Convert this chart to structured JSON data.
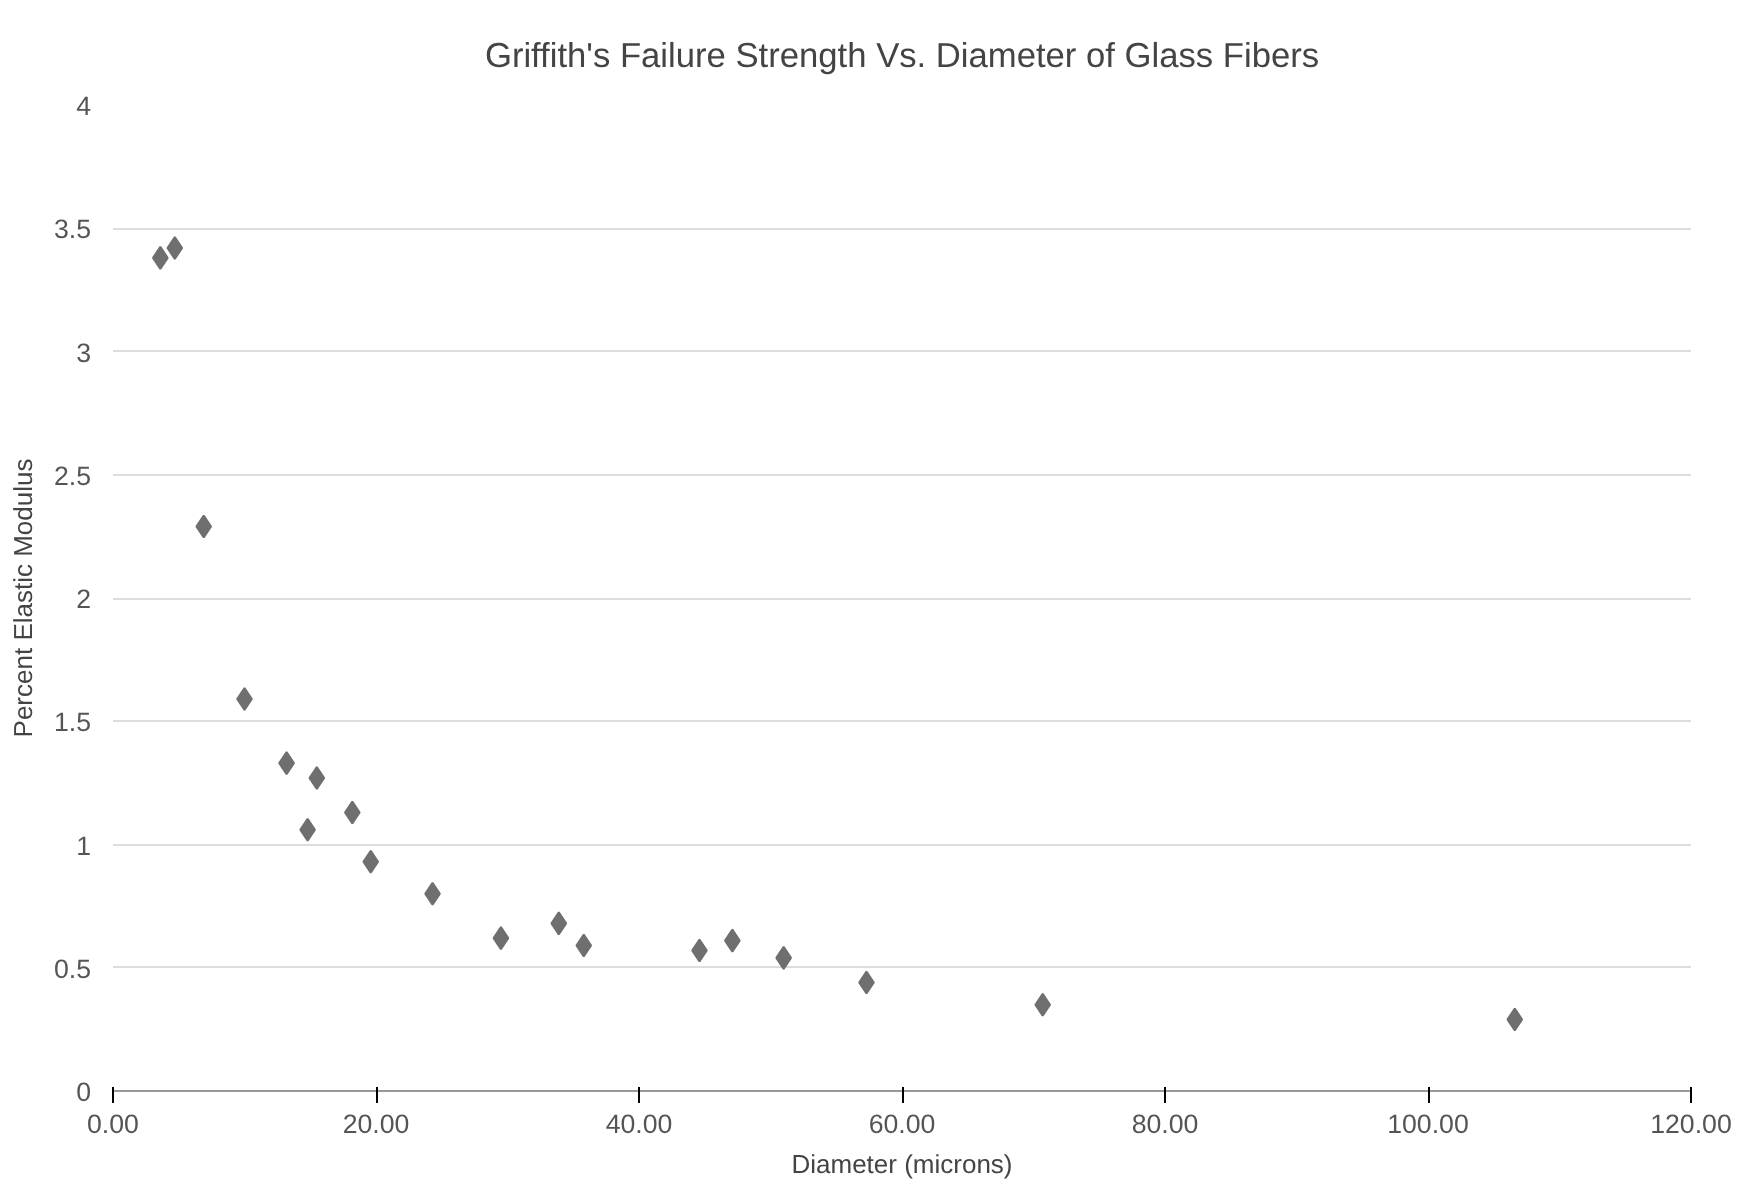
{
  "chart_data": {
    "type": "scatter",
    "title": "Griffith's Failure Strength Vs. Diameter of Glass Fibers",
    "xlabel": "Diameter (microns)",
    "ylabel": "Percent Elastic Modulus",
    "x": [
      3.6,
      4.7,
      6.9,
      10.0,
      13.2,
      14.8,
      15.5,
      18.2,
      19.6,
      24.3,
      29.5,
      33.9,
      35.8,
      44.6,
      47.1,
      51.0,
      57.3,
      70.7,
      106.6
    ],
    "series": [
      {
        "color": "#6f6f6f",
        "values": [
          3.38,
          3.42,
          2.29,
          1.59,
          1.33,
          1.06,
          1.27,
          1.13,
          0.93,
          0.8,
          0.62,
          0.68,
          0.59,
          0.57,
          0.61,
          0.54,
          0.44,
          0.35,
          0.29
        ]
      }
    ],
    "xlim": [
      0,
      120
    ],
    "ylim": [
      0,
      4
    ],
    "xticks": [
      {
        "value": 0,
        "label": "0.00"
      },
      {
        "value": 20,
        "label": "20.00"
      },
      {
        "value": 40,
        "label": "40.00"
      },
      {
        "value": 60,
        "label": "60.00"
      },
      {
        "value": 80,
        "label": "80.00"
      },
      {
        "value": 100,
        "label": "100.00"
      },
      {
        "value": 120,
        "label": "120.00"
      }
    ],
    "yticks": [
      0,
      0.5,
      1,
      1.5,
      2,
      2.5,
      3,
      3.5,
      4
    ],
    "grid": "y",
    "marker": "diamond"
  }
}
